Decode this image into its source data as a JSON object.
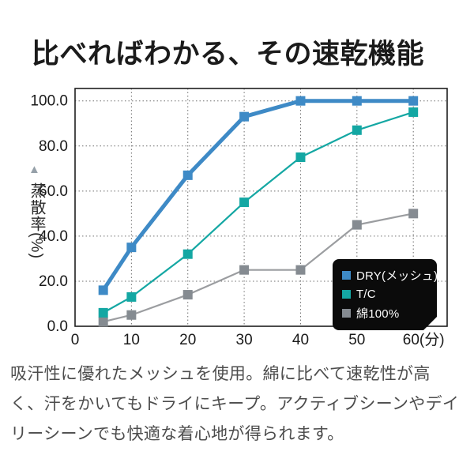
{
  "title": "比べればわかる、その速乾機能",
  "description": {
    "lines": [
      "吸汗性に優れたメッシュを使用。綿に比べて速乾性が高",
      "く、汗をかいてもドライにキープ。アクティブシーンやデイ",
      "リーシーンでも快適な着心地が得られます。"
    ]
  },
  "chart_data": {
    "type": "line",
    "title": "",
    "xlabel": "(分)",
    "ylabel": "蒸散率(%)",
    "ylabel_marker": "▲",
    "x": [
      5,
      10,
      20,
      30,
      40,
      50,
      60
    ],
    "series": [
      {
        "name": "DRY(メッシュ)",
        "color": "#3e8ac6",
        "marker_color": "#3e8ac6",
        "line_width": 5,
        "marker_size": 12,
        "values": [
          16,
          35,
          67,
          93,
          100,
          100,
          100
        ]
      },
      {
        "name": "T/C",
        "color": "#14a7a3",
        "marker_color": "#14a7a3",
        "line_width": 2.2,
        "marker_size": 12,
        "values": [
          6,
          13,
          32,
          55,
          75,
          87,
          95
        ]
      },
      {
        "name": "綿100%",
        "color": "#9b9da0",
        "marker_color": "#858b91",
        "line_width": 2.2,
        "marker_size": 12,
        "values": [
          2,
          5,
          14,
          25,
          25,
          45,
          50
        ]
      }
    ],
    "x_ticks": [
      0,
      10,
      20,
      30,
      40,
      50,
      60
    ],
    "x_tick_labels": [
      "0",
      "10",
      "20",
      "30",
      "40",
      "50",
      "60(分)"
    ],
    "y_ticks": [
      0,
      20,
      40,
      60,
      80,
      100
    ],
    "y_tick_labels": [
      "0.0",
      "20.0",
      "40.0",
      "60.0",
      "80.0",
      "100.0"
    ],
    "xlim": [
      0,
      66
    ],
    "ylim": [
      0,
      105.5
    ],
    "grid": "dotted",
    "legend_position": "lower-right"
  }
}
